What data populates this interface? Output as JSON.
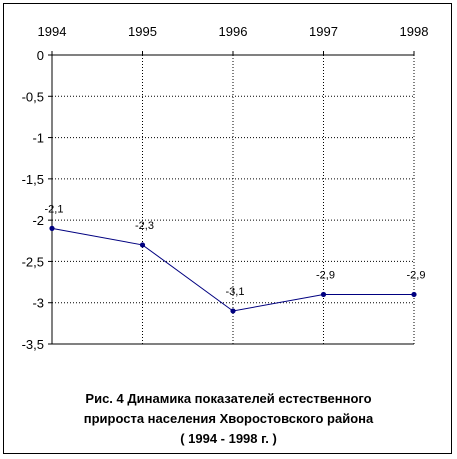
{
  "chart_data": {
    "type": "line",
    "title_lines": [
      "Рис. 4 Динамика показателей естественного",
      "прироста населения Хворостовского района",
      "( 1994 - 1998 г. )"
    ],
    "categories": [
      "1994",
      "1995",
      "1996",
      "1997",
      "1998"
    ],
    "values": [
      -2.1,
      -2.3,
      -3.1,
      -2.9,
      -2.9
    ],
    "data_labels": [
      "-2,1",
      "-2,3",
      "-3,1",
      "-2,9",
      "-2,9"
    ],
    "y_ticks": [
      "0",
      "-0,5",
      "-1",
      "-1,5",
      "-2",
      "-2,5",
      "-3",
      "-3,5"
    ],
    "y_tick_values": [
      0,
      -0.5,
      -1,
      -1.5,
      -2,
      -2.5,
      -3,
      -3.5
    ],
    "ylim": [
      -3.5,
      0
    ],
    "x_axis_position": "top",
    "grid": true,
    "line_color": "#000080",
    "marker_color": "#000080",
    "grid_color": "#000000"
  }
}
